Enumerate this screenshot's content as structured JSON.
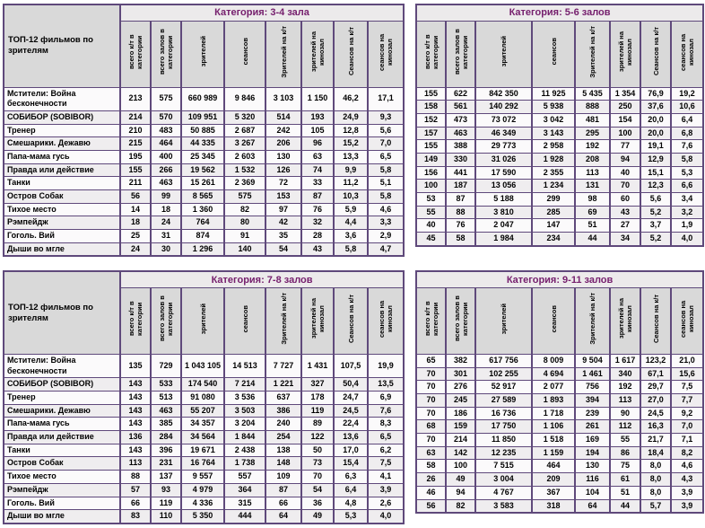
{
  "report": {
    "row_header_title": "ТОП-12 фильмов по зрителям",
    "columns": [
      "всего к/т в категории",
      "всего залов в категории",
      "зрителей",
      "сеансов",
      "Зрителей на к/т",
      "зрителей на кинозал",
      "Сеансов на к/т",
      "сеансов на кинозал"
    ],
    "films": [
      "Мстители: Война бесконечности",
      "СОБИБОР (SOBIBOR)",
      "Тренер",
      "Смешарики. Дежавю",
      "Папа-мама гусь",
      "Правда или действие",
      "Танки",
      "Остров Собак",
      "Тихое место",
      "Рэмпейдж",
      "Гоголь. Вий",
      "Дыши во мгле"
    ],
    "tables": [
      {
        "category": "Категория: 3-4 зала",
        "show_film_names": true,
        "rows": [
          [
            "213",
            "575",
            "660 989",
            "9 846",
            "3 103",
            "1 150",
            "46,2",
            "17,1"
          ],
          [
            "214",
            "570",
            "109 951",
            "5 320",
            "514",
            "193",
            "24,9",
            "9,3"
          ],
          [
            "210",
            "483",
            "50 885",
            "2 687",
            "242",
            "105",
            "12,8",
            "5,6"
          ],
          [
            "215",
            "464",
            "44 335",
            "3 267",
            "206",
            "96",
            "15,2",
            "7,0"
          ],
          [
            "195",
            "400",
            "25 345",
            "2 603",
            "130",
            "63",
            "13,3",
            "6,5"
          ],
          [
            "155",
            "266",
            "19 562",
            "1 532",
            "126",
            "74",
            "9,9",
            "5,8"
          ],
          [
            "211",
            "463",
            "15 261",
            "2 369",
            "72",
            "33",
            "11,2",
            "5,1"
          ],
          [
            "56",
            "99",
            "8 565",
            "575",
            "153",
            "87",
            "10,3",
            "5,8"
          ],
          [
            "14",
            "18",
            "1 360",
            "82",
            "97",
            "76",
            "5,9",
            "4,6"
          ],
          [
            "18",
            "24",
            "764",
            "80",
            "42",
            "32",
            "4,4",
            "3,3"
          ],
          [
            "25",
            "31",
            "874",
            "91",
            "35",
            "28",
            "3,6",
            "2,9"
          ],
          [
            "24",
            "30",
            "1 296",
            "140",
            "54",
            "43",
            "5,8",
            "4,7"
          ]
        ]
      },
      {
        "category": "Категория: 5-6 залов",
        "show_film_names": false,
        "rows": [
          [
            "155",
            "622",
            "842 350",
            "11 925",
            "5 435",
            "1 354",
            "76,9",
            "19,2"
          ],
          [
            "158",
            "561",
            "140 292",
            "5 938",
            "888",
            "250",
            "37,6",
            "10,6"
          ],
          [
            "152",
            "473",
            "73 072",
            "3 042",
            "481",
            "154",
            "20,0",
            "6,4"
          ],
          [
            "157",
            "463",
            "46 349",
            "3 143",
            "295",
            "100",
            "20,0",
            "6,8"
          ],
          [
            "155",
            "388",
            "29 773",
            "2 958",
            "192",
            "77",
            "19,1",
            "7,6"
          ],
          [
            "149",
            "330",
            "31 026",
            "1 928",
            "208",
            "94",
            "12,9",
            "5,8"
          ],
          [
            "156",
            "441",
            "17 590",
            "2 355",
            "113",
            "40",
            "15,1",
            "5,3"
          ],
          [
            "100",
            "187",
            "13 056",
            "1 234",
            "131",
            "70",
            "12,3",
            "6,6"
          ],
          [
            "53",
            "87",
            "5 188",
            "299",
            "98",
            "60",
            "5,6",
            "3,4"
          ],
          [
            "55",
            "88",
            "3 810",
            "285",
            "69",
            "43",
            "5,2",
            "3,2"
          ],
          [
            "40",
            "76",
            "2 047",
            "147",
            "51",
            "27",
            "3,7",
            "1,9"
          ],
          [
            "45",
            "58",
            "1 984",
            "234",
            "44",
            "34",
            "5,2",
            "4,0"
          ]
        ]
      },
      {
        "category": "Категория: 7-8 залов",
        "show_film_names": true,
        "rows": [
          [
            "135",
            "729",
            "1 043 105",
            "14 513",
            "7 727",
            "1 431",
            "107,5",
            "19,9"
          ],
          [
            "143",
            "533",
            "174 540",
            "7 214",
            "1 221",
            "327",
            "50,4",
            "13,5"
          ],
          [
            "143",
            "513",
            "91 080",
            "3 536",
            "637",
            "178",
            "24,7",
            "6,9"
          ],
          [
            "143",
            "463",
            "55 207",
            "3 503",
            "386",
            "119",
            "24,5",
            "7,6"
          ],
          [
            "143",
            "385",
            "34 357",
            "3 204",
            "240",
            "89",
            "22,4",
            "8,3"
          ],
          [
            "136",
            "284",
            "34 564",
            "1 844",
            "254",
            "122",
            "13,6",
            "6,5"
          ],
          [
            "143",
            "396",
            "19 671",
            "2 438",
            "138",
            "50",
            "17,0",
            "6,2"
          ],
          [
            "113",
            "231",
            "16 764",
            "1 738",
            "148",
            "73",
            "15,4",
            "7,5"
          ],
          [
            "88",
            "137",
            "9 557",
            "557",
            "109",
            "70",
            "6,3",
            "4,1"
          ],
          [
            "57",
            "93",
            "4 979",
            "364",
            "87",
            "54",
            "6,4",
            "3,9"
          ],
          [
            "66",
            "119",
            "4 336",
            "315",
            "66",
            "36",
            "4,8",
            "2,6"
          ],
          [
            "83",
            "110",
            "5 350",
            "444",
            "64",
            "49",
            "5,3",
            "4,0"
          ]
        ]
      },
      {
        "category": "Категория: 9-11 залов",
        "show_film_names": false,
        "rows": [
          [
            "65",
            "382",
            "617 756",
            "8 009",
            "9 504",
            "1 617",
            "123,2",
            "21,0"
          ],
          [
            "70",
            "301",
            "102 255",
            "4 694",
            "1 461",
            "340",
            "67,1",
            "15,6"
          ],
          [
            "70",
            "276",
            "52 917",
            "2 077",
            "756",
            "192",
            "29,7",
            "7,5"
          ],
          [
            "70",
            "245",
            "27 589",
            "1 893",
            "394",
            "113",
            "27,0",
            "7,7"
          ],
          [
            "70",
            "186",
            "16 736",
            "1 718",
            "239",
            "90",
            "24,5",
            "9,2"
          ],
          [
            "68",
            "159",
            "17 750",
            "1 106",
            "261",
            "112",
            "16,3",
            "7,0"
          ],
          [
            "70",
            "214",
            "11 850",
            "1 518",
            "169",
            "55",
            "21,7",
            "7,1"
          ],
          [
            "63",
            "142",
            "12 235",
            "1 159",
            "194",
            "86",
            "18,4",
            "8,2"
          ],
          [
            "58",
            "100",
            "7 515",
            "464",
            "130",
            "75",
            "8,0",
            "4,6"
          ],
          [
            "26",
            "49",
            "3 004",
            "209",
            "116",
            "61",
            "8,0",
            "4,3"
          ],
          [
            "46",
            "94",
            "4 767",
            "367",
            "104",
            "51",
            "8,0",
            "3,9"
          ],
          [
            "56",
            "82",
            "3 583",
            "318",
            "64",
            "44",
            "5,7",
            "3,9"
          ]
        ]
      }
    ],
    "colors": {
      "border": "#5F497B",
      "category_text": "#76206E",
      "header_bg": "#D9D9D9",
      "category_band_bg": "#ECEAEB",
      "row_alt_bg": "#EFEDEF"
    }
  }
}
